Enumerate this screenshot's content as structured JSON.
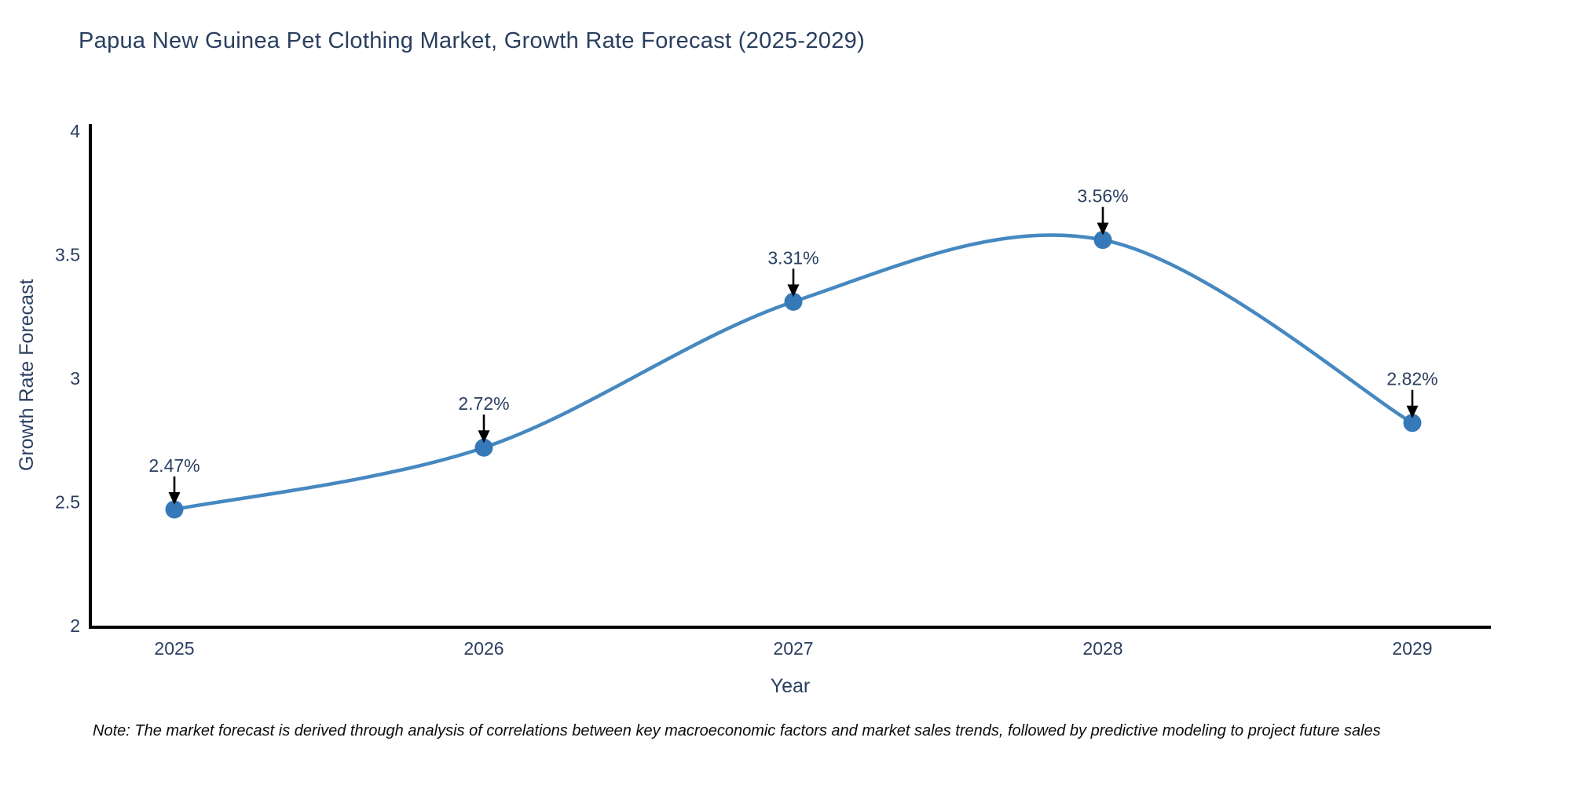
{
  "title": "Papua New Guinea Pet Clothing Market, Growth Rate Forecast (2025-2029)",
  "note": "Note: The market forecast is derived through analysis of correlations between key macroeconomic factors and market sales trends, followed by predictive modeling to project future sales",
  "chart_data": {
    "type": "line",
    "title": "Papua New Guinea Pet Clothing Market, Growth Rate Forecast (2025-2029)",
    "x": [
      2025,
      2026,
      2027,
      2028,
      2029
    ],
    "categories": [
      "2025",
      "2026",
      "2027",
      "2028",
      "2029"
    ],
    "series": [
      {
        "name": "Growth Rate Forecast",
        "values": [
          2.47,
          2.72,
          3.31,
          3.56,
          2.82
        ]
      }
    ],
    "point_labels": [
      "2.47%",
      "2.72%",
      "3.31%",
      "3.56%",
      "2.82%"
    ],
    "xlabel": "Year",
    "ylabel": "Growth Rate Forecast",
    "ylim": [
      2,
      4
    ],
    "yticks": [
      2,
      2.5,
      3,
      3.5,
      4
    ],
    "ytick_labels": [
      "2",
      "2.5",
      "3",
      "3.5",
      "4"
    ],
    "grid": false,
    "legend": false,
    "line_shape": "spline",
    "annotations": "value labels above each point with black down arrows",
    "colors": {
      "line": "#4688c0",
      "marker": "#3579b8",
      "arrow": "#000000",
      "text": "#2a3f5f",
      "axis": "#000000",
      "background": "#ffffff"
    }
  }
}
